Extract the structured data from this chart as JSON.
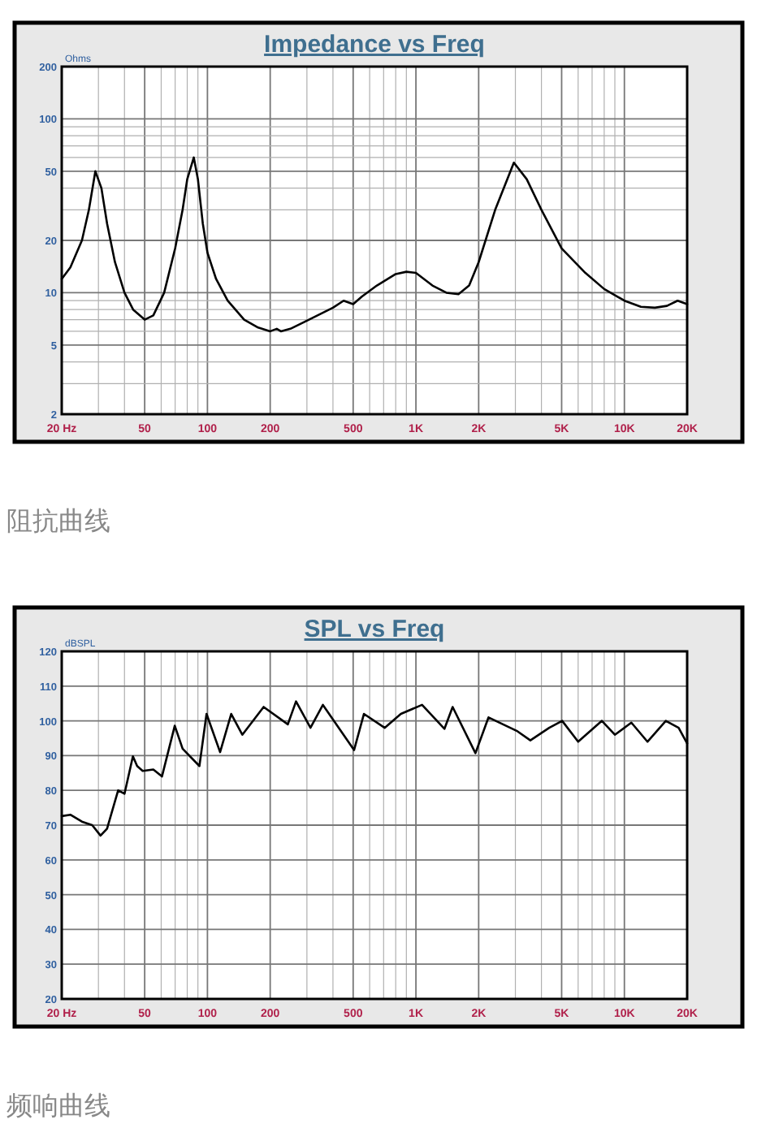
{
  "chart_data": [
    {
      "type": "line",
      "title": "Impedance vs Freq",
      "ylabel": "Ohms",
      "log": "xy",
      "grid": true,
      "xlim": [
        20,
        20000
      ],
      "ylim": [
        2,
        200
      ],
      "xticks": [
        {
          "value": 20,
          "label": "20 Hz"
        },
        {
          "value": 30,
          "label": null
        },
        {
          "value": 40,
          "label": null
        },
        50,
        {
          "value": 60,
          "label": null
        },
        {
          "value": 70,
          "label": null
        },
        {
          "value": 80,
          "label": null
        },
        {
          "value": 90,
          "label": null
        },
        100,
        200,
        {
          "value": 300,
          "label": null
        },
        {
          "value": 400,
          "label": null
        },
        500,
        {
          "value": 600,
          "label": null
        },
        {
          "value": 700,
          "label": null
        },
        {
          "value": 800,
          "label": null
        },
        {
          "value": 900,
          "label": null
        },
        {
          "value": 1000,
          "label": "1K"
        },
        {
          "value": 2000,
          "label": "2K"
        },
        {
          "value": 3000,
          "label": null
        },
        {
          "value": 4000,
          "label": null
        },
        {
          "value": 5000,
          "label": "5K"
        },
        {
          "value": 6000,
          "label": null
        },
        {
          "value": 7000,
          "label": null
        },
        {
          "value": 8000,
          "label": null
        },
        {
          "value": 9000,
          "label": null
        },
        {
          "value": 10000,
          "label": "10K"
        },
        {
          "value": 20000,
          "label": "20K"
        }
      ],
      "yticks": [
        2,
        {
          "value": 3,
          "label": null
        },
        {
          "value": 4,
          "label": null
        },
        5,
        {
          "value": 6,
          "label": null
        },
        {
          "value": 7,
          "label": null
        },
        {
          "value": 8,
          "label": null
        },
        {
          "value": 9,
          "label": null
        },
        10,
        20,
        {
          "value": 30,
          "label": null
        },
        {
          "value": 40,
          "label": null
        },
        50,
        {
          "value": 60,
          "label": null
        },
        {
          "value": 70,
          "label": null
        },
        {
          "value": 80,
          "label": null
        },
        {
          "value": 90,
          "label": null
        },
        100,
        200
      ],
      "series": [
        {
          "color": "#000000",
          "x": [
            20,
            22,
            25,
            27,
            29,
            31,
            33,
            36,
            40,
            44,
            50,
            55,
            62,
            70,
            76,
            80,
            86,
            90,
            95,
            100,
            110,
            125,
            150,
            175,
            200,
            215,
            225,
            250,
            300,
            400,
            450,
            500,
            550,
            650,
            800,
            900,
            1000,
            1200,
            1400,
            1600,
            1800,
            2000,
            2400,
            2950,
            3400,
            4000,
            5000,
            6500,
            8000,
            10000,
            12000,
            14000,
            16000,
            18000,
            20000
          ],
          "values": [
            12,
            14,
            20,
            30,
            50,
            40,
            25,
            15,
            10,
            8,
            7,
            7.4,
            10,
            18,
            30,
            45,
            60,
            45,
            25,
            17,
            12,
            9,
            7,
            6.3,
            6,
            6.2,
            6,
            6.2,
            6.9,
            8.2,
            9,
            8.6,
            9.5,
            11,
            12.8,
            13.2,
            13,
            11,
            10,
            9.8,
            11,
            15,
            30,
            56,
            45,
            30,
            18,
            13,
            10.5,
            9,
            8.3,
            8.2,
            8.4,
            9,
            8.6
          ]
        }
      ],
      "annotations": [
        "阻抗曲线"
      ]
    },
    {
      "type": "line",
      "title": "SPL vs Freq",
      "ylabel": "dBSPL",
      "log": "x",
      "grid": true,
      "xlim": [
        20,
        20000
      ],
      "ylim": [
        20,
        120
      ],
      "xticks": [
        {
          "value": 20,
          "label": "20 Hz"
        },
        {
          "value": 30,
          "label": null
        },
        {
          "value": 40,
          "label": null
        },
        50,
        {
          "value": 60,
          "label": null
        },
        {
          "value": 70,
          "label": null
        },
        {
          "value": 80,
          "label": null
        },
        {
          "value": 90,
          "label": null
        },
        100,
        200,
        {
          "value": 300,
          "label": null
        },
        {
          "value": 400,
          "label": null
        },
        500,
        {
          "value": 600,
          "label": null
        },
        {
          "value": 700,
          "label": null
        },
        {
          "value": 800,
          "label": null
        },
        {
          "value": 900,
          "label": null
        },
        {
          "value": 1000,
          "label": "1K"
        },
        {
          "value": 2000,
          "label": "2K"
        },
        {
          "value": 3000,
          "label": null
        },
        {
          "value": 4000,
          "label": null
        },
        {
          "value": 5000,
          "label": "5K"
        },
        {
          "value": 6000,
          "label": null
        },
        {
          "value": 7000,
          "label": null
        },
        {
          "value": 8000,
          "label": null
        },
        {
          "value": 9000,
          "label": null
        },
        {
          "value": 10000,
          "label": "10K"
        },
        {
          "value": 20000,
          "label": "20K"
        }
      ],
      "yticks": [
        20,
        30,
        40,
        50,
        60,
        70,
        80,
        90,
        100,
        110,
        120
      ],
      "series": [
        {
          "color": "#000000",
          "x": [
            20,
            22,
            25,
            28,
            30.7,
            33,
            37.3,
            40,
            43.9,
            46,
            48.9,
            55,
            60.5,
            69.7,
            76,
            91.5,
            99,
            115,
            130,
            147,
            186,
            243,
            266,
            312,
            358,
            505,
            563,
            708,
            847,
            1070,
            1370,
            1500,
            1930,
            2230,
            3070,
            3540,
            4360,
            5030,
            6000,
            7800,
            9000,
            10800,
            12900,
            15800,
            18200,
            20000
          ],
          "values": [
            72.6,
            73,
            71,
            70,
            67,
            69,
            80,
            79,
            89.8,
            87,
            85.6,
            86,
            84,
            98.6,
            92,
            87,
            102,
            91,
            102,
            96,
            104,
            99,
            105.6,
            98,
            104.6,
            91.6,
            102,
            98,
            102,
            104.6,
            97.7,
            104,
            90.7,
            101,
            97,
            94.4,
            98,
            100,
            94,
            100,
            96,
            99.5,
            94,
            100,
            98,
            93.5
          ]
        }
      ],
      "annotations": [
        "频响曲线"
      ]
    }
  ]
}
